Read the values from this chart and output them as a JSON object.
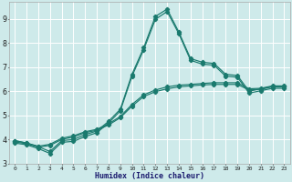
{
  "xlabel": "Humidex (Indice chaleur)",
  "bg_color": "#ceeaea",
  "grid_color": "#ffffff",
  "line_color": "#1a7a6e",
  "xlim": [
    -0.5,
    23.5
  ],
  "ylim": [
    3.0,
    9.7
  ],
  "yticks": [
    3,
    4,
    5,
    6,
    7,
    8,
    9
  ],
  "xticks": [
    0,
    1,
    2,
    3,
    4,
    5,
    6,
    7,
    8,
    9,
    10,
    11,
    12,
    13,
    14,
    15,
    16,
    17,
    18,
    19,
    20,
    21,
    22,
    23
  ],
  "series1_x": [
    0,
    1,
    2,
    3,
    4,
    5,
    6,
    7,
    8,
    9,
    10,
    11,
    12,
    13,
    14,
    15,
    16,
    17,
    18,
    19,
    20,
    21,
    22,
    23
  ],
  "series1_y": [
    3.95,
    3.85,
    3.7,
    3.5,
    3.95,
    4.0,
    4.2,
    4.35,
    4.75,
    5.25,
    6.7,
    7.8,
    9.1,
    9.4,
    8.45,
    7.35,
    7.2,
    7.15,
    6.7,
    6.65,
    6.0,
    6.1,
    6.2,
    6.2
  ],
  "series2_x": [
    0,
    1,
    2,
    3,
    4,
    5,
    6,
    7,
    8,
    9,
    10,
    11,
    12,
    13,
    14,
    15,
    16,
    17,
    18,
    19,
    20,
    21,
    22,
    23
  ],
  "series2_y": [
    3.95,
    3.85,
    3.72,
    3.8,
    4.05,
    4.15,
    4.32,
    4.42,
    4.65,
    4.95,
    5.45,
    5.85,
    6.05,
    6.18,
    6.25,
    6.28,
    6.32,
    6.35,
    6.35,
    6.35,
    6.1,
    6.12,
    6.22,
    6.22
  ],
  "series3_x": [
    0,
    1,
    2,
    3,
    4,
    5,
    6,
    7,
    8,
    9,
    10,
    11,
    12,
    13,
    14,
    15,
    16,
    17,
    18,
    19,
    20,
    21,
    22,
    23
  ],
  "series3_y": [
    3.9,
    3.82,
    3.68,
    3.75,
    4.0,
    4.1,
    4.28,
    4.38,
    4.6,
    4.9,
    5.38,
    5.78,
    5.98,
    6.1,
    6.18,
    6.22,
    6.26,
    6.28,
    6.28,
    6.28,
    6.05,
    6.08,
    6.18,
    6.18
  ],
  "series4_x": [
    0,
    1,
    2,
    3,
    4,
    5,
    6,
    7,
    8,
    9,
    10,
    11,
    12,
    13,
    14,
    15,
    16,
    17,
    18,
    19,
    20,
    21,
    22,
    23
  ],
  "series4_y": [
    3.85,
    3.78,
    3.62,
    3.42,
    3.88,
    3.92,
    4.12,
    4.28,
    4.68,
    5.18,
    6.62,
    7.72,
    8.98,
    9.3,
    8.38,
    7.28,
    7.12,
    7.08,
    6.62,
    6.58,
    5.92,
    6.02,
    6.12,
    6.12
  ]
}
